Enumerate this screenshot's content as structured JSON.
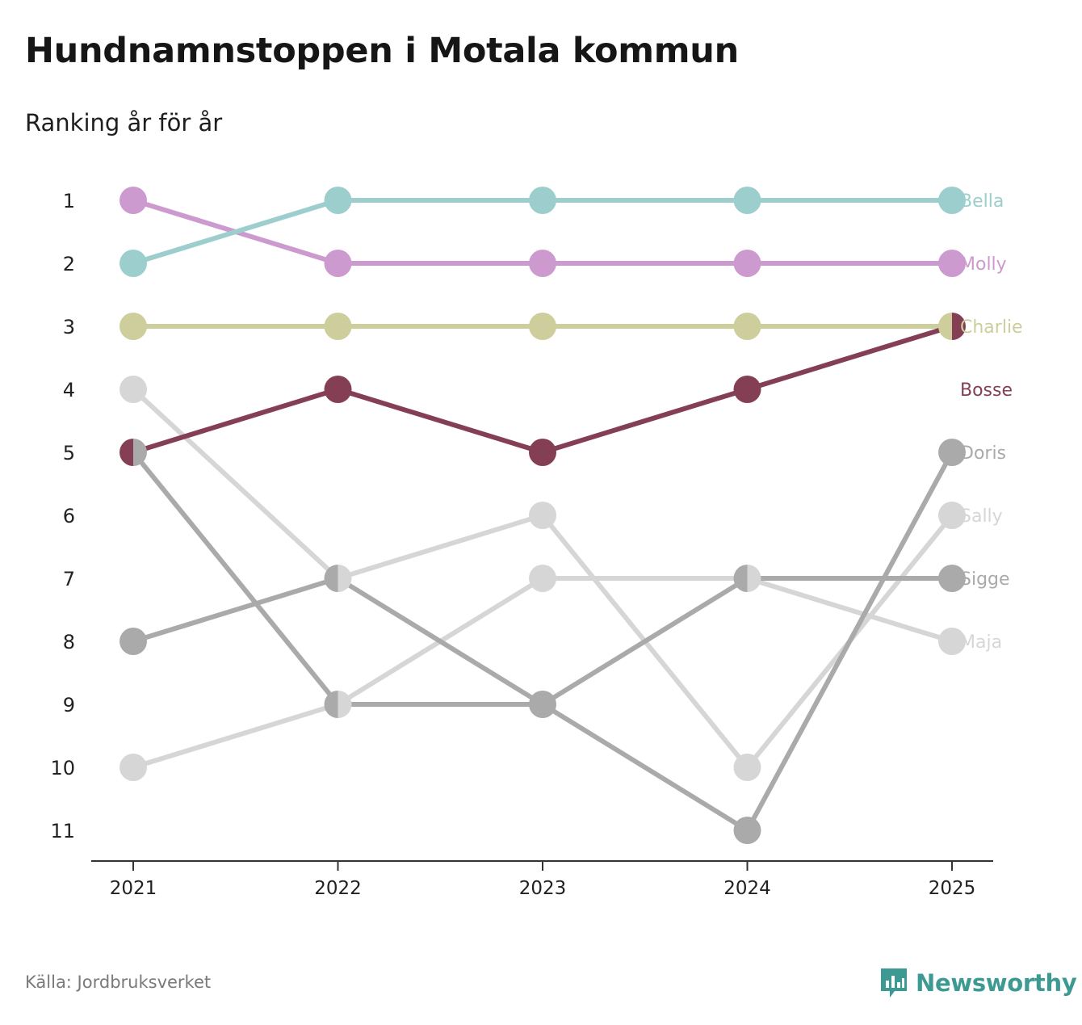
{
  "title": "Hundnamnstoppen i Motala kommun",
  "subtitle": "Ranking år för år",
  "source": "Källa: Jordbruksverket",
  "brand": "Newsworthy",
  "brand_color": "#3d9a93",
  "chart_data": {
    "type": "line",
    "title": "Hundnamnstoppen i Motala kommun",
    "subtitle": "Ranking år för år",
    "xlabel": "",
    "ylabel": "",
    "x": [
      "2021",
      "2022",
      "2023",
      "2024",
      "2025"
    ],
    "yticks": [
      "1",
      "2",
      "3",
      "4",
      "5",
      "6",
      "7",
      "8",
      "9",
      "10",
      "11"
    ],
    "ylim": [
      1,
      11
    ],
    "y_inverted": true,
    "grid": false,
    "series": [
      {
        "name": "Maja",
        "color": "#d6d6d6",
        "values": [
          10,
          9,
          7,
          7,
          8
        ]
      },
      {
        "name": "Sally",
        "color": "#d6d6d6",
        "values": [
          4,
          7,
          6,
          10,
          6
        ]
      },
      {
        "name": "Sigge",
        "color": "#aaaaaa",
        "values": [
          8,
          7,
          9,
          7,
          7
        ]
      },
      {
        "name": "Doris",
        "color": "#aaaaaa",
        "values": [
          5,
          9,
          9,
          11,
          5
        ]
      },
      {
        "name": "Charlie",
        "color": "#cdce9b",
        "values": [
          3,
          3,
          3,
          3,
          3
        ]
      },
      {
        "name": "Bosse",
        "color": "#843f55",
        "values": [
          5,
          4,
          5,
          4,
          3
        ]
      },
      {
        "name": "Molly",
        "color": "#cd9acf",
        "values": [
          1,
          2,
          2,
          2,
          2
        ]
      },
      {
        "name": "Bella",
        "color": "#9ccecd",
        "values": [
          2,
          1,
          1,
          1,
          1
        ]
      }
    ]
  }
}
